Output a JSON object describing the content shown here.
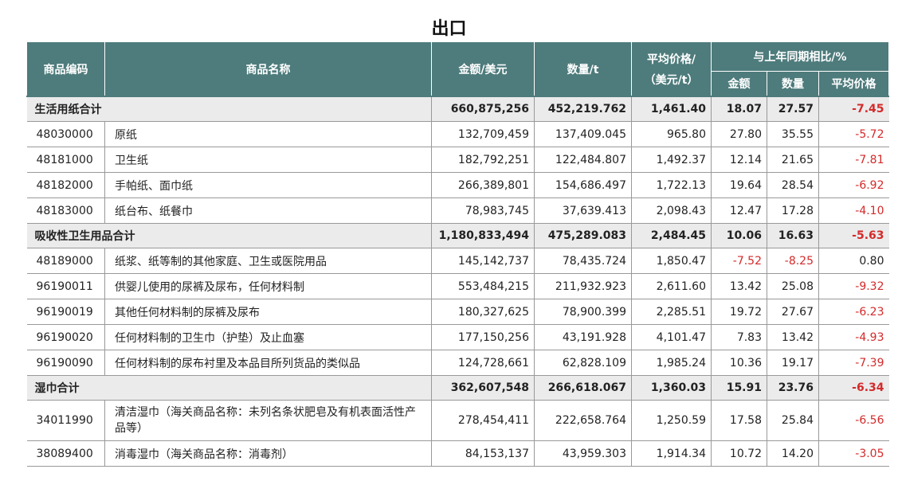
{
  "title": "出口",
  "headers": {
    "code": "商品编码",
    "name": "商品名称",
    "amount": "金额/美元",
    "quantity": "数量/t",
    "avg_price_line1": "平均价格/",
    "avg_price_line2": "（美元/t）",
    "yoy": "与上年同期相比/%",
    "yoy_amount": "金额",
    "yoy_quantity": "数量",
    "yoy_price": "平均价格"
  },
  "rows": [
    {
      "type": "subtotal",
      "name": "生活用纸合计",
      "amount": "660,875,256",
      "quantity": "452,219.762",
      "price": "1,461.40",
      "yoy_amount": "18.07",
      "yoy_quantity": "27.57",
      "yoy_price": "-7.45"
    },
    {
      "type": "item",
      "code": "48030000",
      "name": "原纸",
      "amount": "132,709,459",
      "quantity": "137,409.045",
      "price": "965.80",
      "yoy_amount": "27.80",
      "yoy_quantity": "35.55",
      "yoy_price": "-5.72"
    },
    {
      "type": "item",
      "code": "48181000",
      "name": "卫生纸",
      "amount": "182,792,251",
      "quantity": "122,484.807",
      "price": "1,492.37",
      "yoy_amount": "12.14",
      "yoy_quantity": "21.65",
      "yoy_price": "-7.81"
    },
    {
      "type": "item",
      "code": "48182000",
      "name": "手帕纸、面巾纸",
      "amount": "266,389,801",
      "quantity": "154,686.497",
      "price": "1,722.13",
      "yoy_amount": "19.64",
      "yoy_quantity": "28.54",
      "yoy_price": "-6.92"
    },
    {
      "type": "item",
      "code": "48183000",
      "name": "纸台布、纸餐巾",
      "amount": "78,983,745",
      "quantity": "37,639.413",
      "price": "2,098.43",
      "yoy_amount": "12.47",
      "yoy_quantity": "17.28",
      "yoy_price": "-4.10"
    },
    {
      "type": "subtotal",
      "name": "吸收性卫生用品合计",
      "amount": "1,180,833,494",
      "quantity": "475,289.083",
      "price": "2,484.45",
      "yoy_amount": "10.06",
      "yoy_quantity": "16.63",
      "yoy_price": "-5.63"
    },
    {
      "type": "item",
      "code": "48189000",
      "name": "纸浆、纸等制的其他家庭、卫生或医院用品",
      "amount": "145,142,737",
      "quantity": "78,435.724",
      "price": "1,850.47",
      "yoy_amount": "-7.52",
      "yoy_quantity": "-8.25",
      "yoy_price": "0.80"
    },
    {
      "type": "item",
      "code": "96190011",
      "name": "供婴儿使用的尿裤及尿布，任何材料制",
      "amount": "553,484,215",
      "quantity": "211,932.923",
      "price": "2,611.60",
      "yoy_amount": "13.42",
      "yoy_quantity": "25.08",
      "yoy_price": "-9.32"
    },
    {
      "type": "item",
      "code": "96190019",
      "name": "其他任何材料制的尿裤及尿布",
      "amount": "180,327,625",
      "quantity": "78,900.399",
      "price": "2,285.51",
      "yoy_amount": "19.72",
      "yoy_quantity": "27.67",
      "yoy_price": "-6.23"
    },
    {
      "type": "item",
      "code": "96190020",
      "name": "任何材料制的卫生巾（护垫）及止血塞",
      "amount": "177,150,256",
      "quantity": "43,191.928",
      "price": "4,101.47",
      "yoy_amount": "7.83",
      "yoy_quantity": "13.42",
      "yoy_price": "-4.93"
    },
    {
      "type": "item",
      "code": "96190090",
      "name": "任何材料制的尿布衬里及本品目所列货品的类似品",
      "amount": "124,728,661",
      "quantity": "62,828.109",
      "price": "1,985.24",
      "yoy_amount": "10.36",
      "yoy_quantity": "19.17",
      "yoy_price": "-7.39"
    },
    {
      "type": "subtotal",
      "name": "湿巾合计",
      "amount": "362,607,548",
      "quantity": "266,618.067",
      "price": "1,360.03",
      "yoy_amount": "15.91",
      "yoy_quantity": "23.76",
      "yoy_price": "-6.34"
    },
    {
      "type": "item",
      "code": "34011990",
      "name": "清洁湿巾（海关商品名称：未列名条状肥皂及有机表面活性产品等）",
      "amount": "278,454,411",
      "quantity": "222,658.764",
      "price": "1,250.59",
      "yoy_amount": "17.58",
      "yoy_quantity": "25.84",
      "yoy_price": "-6.56"
    },
    {
      "type": "item",
      "code": "38089400",
      "name": "消毒湿巾（海关商品名称：消毒剂）",
      "amount": "84,153,137",
      "quantity": "43,959.303",
      "price": "1,914.34",
      "yoy_amount": "10.72",
      "yoy_quantity": "14.20",
      "yoy_price": "-3.05"
    }
  ],
  "colors": {
    "header_bg": "#4e7b7c",
    "subtotal_bg": "#ebebeb",
    "negative": "#d42a2a"
  }
}
